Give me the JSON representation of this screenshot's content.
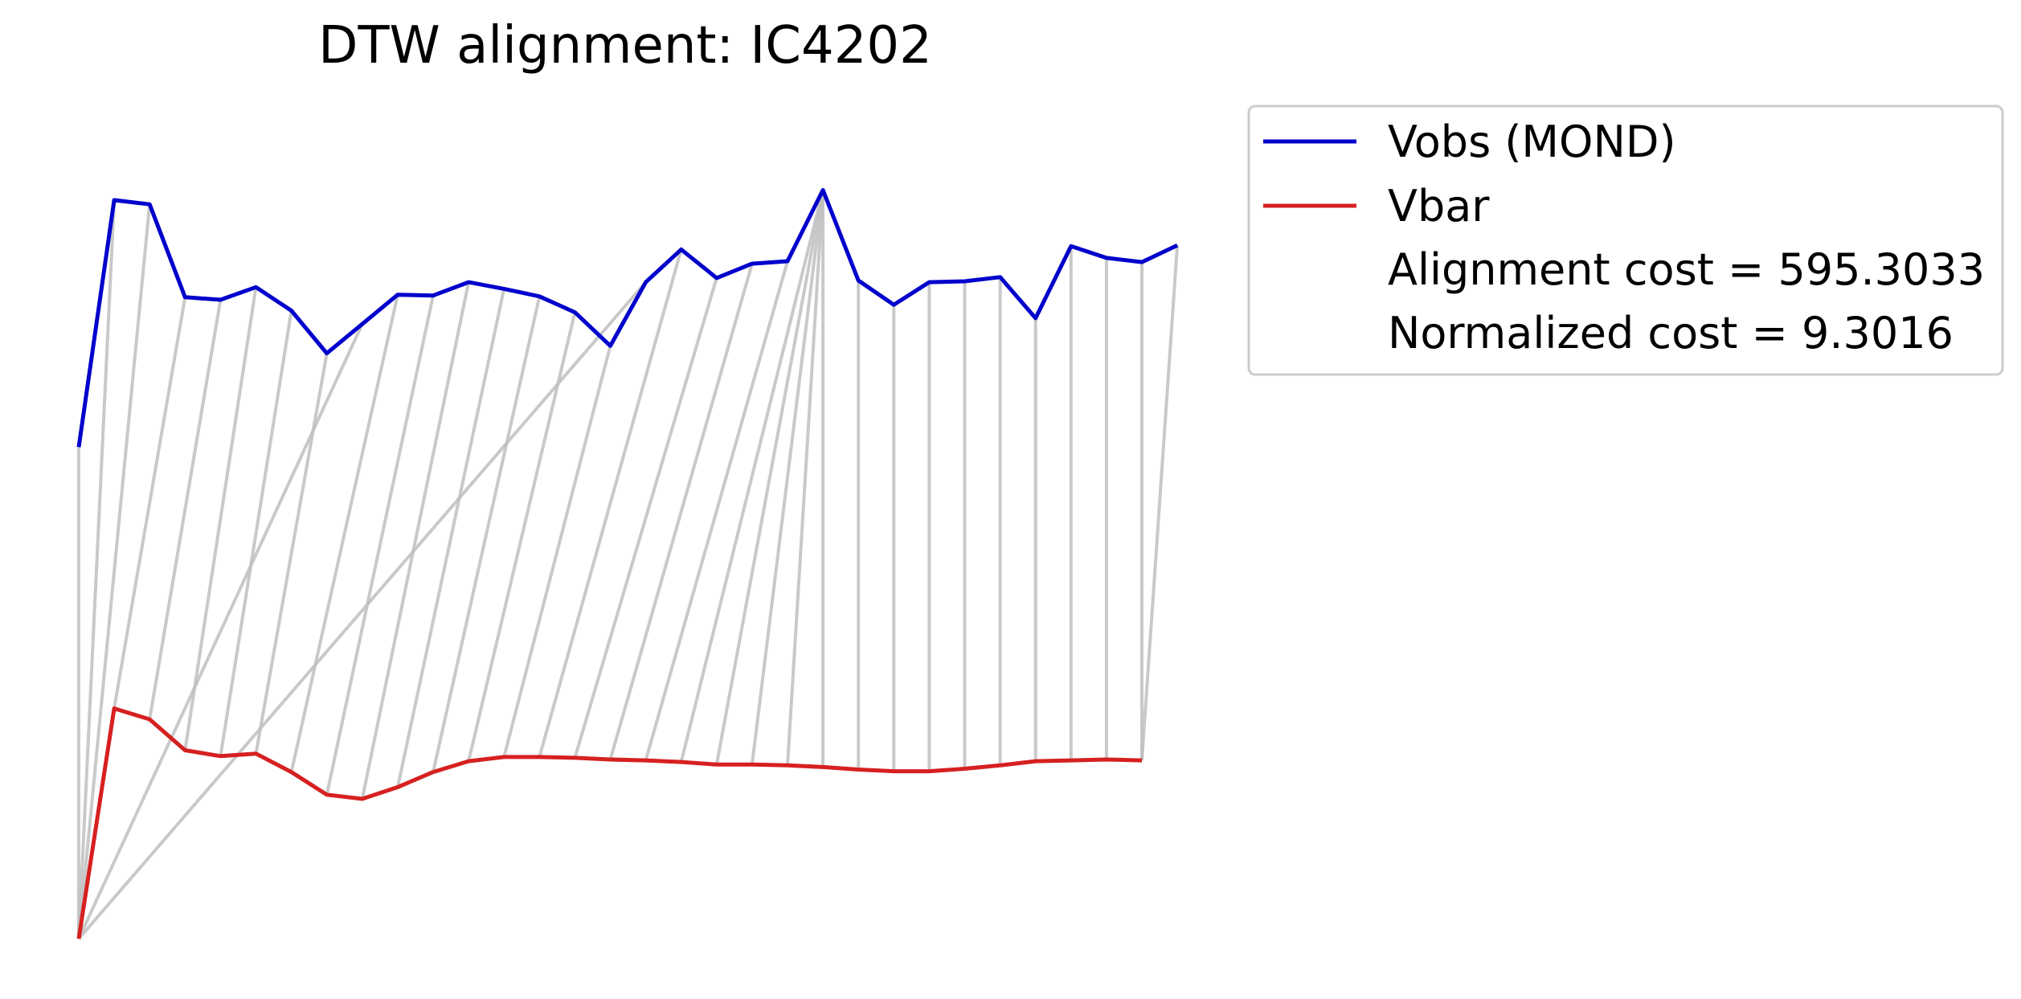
{
  "chart_data": {
    "type": "line",
    "title": "DTW alignment: IC4202",
    "xlabel": "",
    "ylabel": "",
    "axes_visible": false,
    "grid": false,
    "ylim": [
      0,
      1
    ],
    "legend_position": "outside-top-right",
    "alignment_line_color": "#bfbfbf",
    "series": [
      {
        "name": "Vobs (MOND)",
        "color": "#0000cc",
        "values": [
          0.587,
          0.882,
          0.877,
          0.766,
          0.763,
          0.778,
          0.75,
          0.699,
          0.734,
          0.769,
          0.768,
          0.784,
          0.776,
          0.767,
          0.748,
          0.708,
          0.784,
          0.823,
          0.789,
          0.806,
          0.809,
          0.894,
          0.786,
          0.757,
          0.784,
          0.785,
          0.79,
          0.741,
          0.827,
          0.813,
          0.808,
          0.828
        ]
      },
      {
        "name": "Vbar",
        "color": "#d62020",
        "values": [
          0.0,
          0.275,
          0.262,
          0.225,
          0.218,
          0.221,
          0.199,
          0.172,
          0.167,
          0.181,
          0.199,
          0.212,
          0.217,
          0.217,
          0.216,
          0.214,
          0.213,
          0.211,
          0.208,
          0.208,
          0.207,
          0.205,
          0.202,
          0.2,
          0.2,
          0.203,
          0.207,
          0.212,
          0.213,
          0.214,
          0.213
        ]
      }
    ],
    "alignment_pairs": [
      [
        0,
        0
      ],
      [
        1,
        0
      ],
      [
        2,
        0
      ],
      [
        3,
        1
      ],
      [
        4,
        2
      ],
      [
        5,
        3
      ],
      [
        6,
        4
      ],
      [
        7,
        5
      ],
      [
        8,
        0
      ],
      [
        9,
        6
      ],
      [
        10,
        7
      ],
      [
        11,
        8
      ],
      [
        12,
        9
      ],
      [
        13,
        10
      ],
      [
        14,
        11
      ],
      [
        15,
        12
      ],
      [
        16,
        0
      ],
      [
        17,
        13
      ],
      [
        18,
        14
      ],
      [
        19,
        15
      ],
      [
        20,
        16
      ],
      [
        21,
        17
      ],
      [
        21,
        18
      ],
      [
        21,
        19
      ],
      [
        21,
        20
      ],
      [
        21,
        21
      ],
      [
        22,
        22
      ],
      [
        23,
        23
      ],
      [
        24,
        24
      ],
      [
        25,
        25
      ],
      [
        26,
        26
      ],
      [
        27,
        27
      ],
      [
        28,
        28
      ],
      [
        29,
        29
      ],
      [
        30,
        30
      ],
      [
        31,
        30
      ]
    ],
    "legend_extra": [
      "Alignment cost = 595.3033",
      "Normalized cost = 9.3016"
    ]
  }
}
